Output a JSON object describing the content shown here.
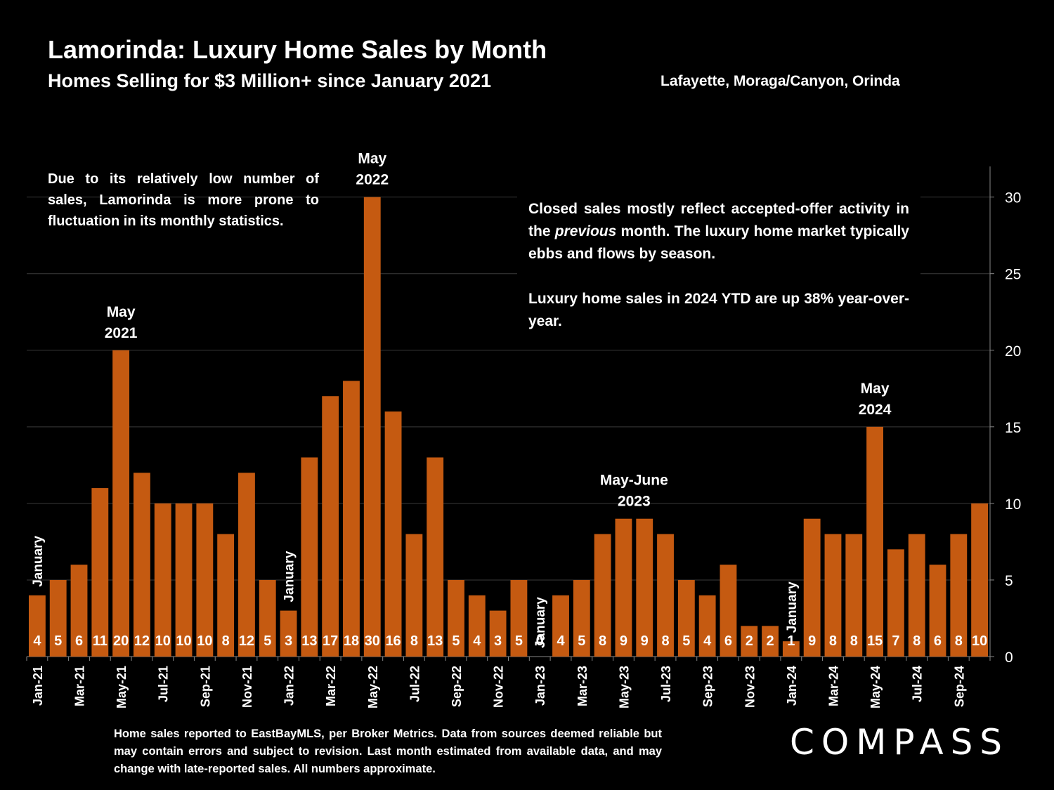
{
  "header": {
    "title": "Lamorinda:  Luxury Home Sales by Month",
    "subtitle": "Homes Selling for $3 Million+ since January 2021",
    "region": "Lafayette, Moraga/Canyon, Orinda"
  },
  "notes": {
    "left": "Due to its relatively low number of sales, Lamorinda is more prone to fluctuation in its monthly statistics.",
    "right_before": "Closed sales mostly reflect accepted-offer activity in the ",
    "right_emph": "previous",
    "right_after": " month. The luxury home market typically ebbs and flows by season.",
    "right_p2": "Luxury home sales in 2024 YTD are up 38% year-over-year."
  },
  "footer": "Home sales reported to EastBayMLS, per Broker Metrics. Data from sources deemed reliable but may contain errors and subject to revision.  Last month estimated from available data, and may change with late-reported sales. All numbers approximate.",
  "logo": "COMPASS",
  "colors": {
    "bar": "#C55A11",
    "background": "#000000",
    "text": "#FFFFFF",
    "gridline": "#3A3A3A"
  },
  "chart_data": {
    "type": "bar",
    "categories": [
      "Jan-21",
      "Feb-21",
      "Mar-21",
      "Apr-21",
      "May-21",
      "Jun-21",
      "Jul-21",
      "Aug-21",
      "Sep-21",
      "Oct-21",
      "Nov-21",
      "Dec-21",
      "Jan-22",
      "Feb-22",
      "Mar-22",
      "Apr-22",
      "May-22",
      "Jun-22",
      "Jul-22",
      "Aug-22",
      "Sep-22",
      "Oct-22",
      "Nov-22",
      "Dec-22",
      "Jan-23",
      "Feb-23",
      "Mar-23",
      "Apr-23",
      "May-23",
      "Jun-23",
      "Jul-23",
      "Aug-23",
      "Sep-23",
      "Oct-23",
      "Nov-23",
      "Dec-23",
      "Jan-24",
      "Feb-24",
      "Mar-24",
      "Apr-24",
      "May-24",
      "Jun-24",
      "Jul-24",
      "Aug-24",
      "Sep-24",
      "Oct-24"
    ],
    "values": [
      4,
      5,
      6,
      11,
      20,
      12,
      10,
      10,
      10,
      8,
      12,
      5,
      3,
      13,
      17,
      18,
      30,
      16,
      8,
      13,
      5,
      4,
      3,
      5,
      0,
      4,
      5,
      8,
      9,
      9,
      8,
      5,
      4,
      6,
      2,
      2,
      1,
      9,
      8,
      8,
      15,
      7,
      8,
      6,
      8,
      10
    ],
    "x_tick_labels": [
      "Jan-21",
      "Mar-21",
      "May-21",
      "Jul-21",
      "Sep-21",
      "Nov-21",
      "Jan-22",
      "Mar-22",
      "May-22",
      "Jul-22",
      "Sep-22",
      "Nov-22",
      "Jan-23",
      "Mar-23",
      "May-23",
      "Jul-23",
      "Sep-23",
      "Nov-23",
      "Jan-24",
      "Mar-24",
      "May-24",
      "Jul-24",
      "Sep-24"
    ],
    "y_ticks": [
      0,
      5,
      10,
      15,
      20,
      25,
      30
    ],
    "ylim": [
      0,
      32
    ],
    "y_axis_side": "right",
    "grid": true,
    "annotations": [
      {
        "index": 4,
        "lines": [
          "May",
          "2021"
        ]
      },
      {
        "index": 16,
        "lines": [
          "May",
          "2022"
        ]
      },
      {
        "index": 28.5,
        "lines": [
          "May-June",
          "2023"
        ]
      },
      {
        "index": 40,
        "lines": [
          "May",
          "2024"
        ]
      }
    ],
    "january_labels": [
      {
        "index": 0,
        "text": "January"
      },
      {
        "index": 12,
        "text": "January"
      },
      {
        "index": 24,
        "text": "January"
      },
      {
        "index": 36,
        "text": "January"
      }
    ]
  }
}
